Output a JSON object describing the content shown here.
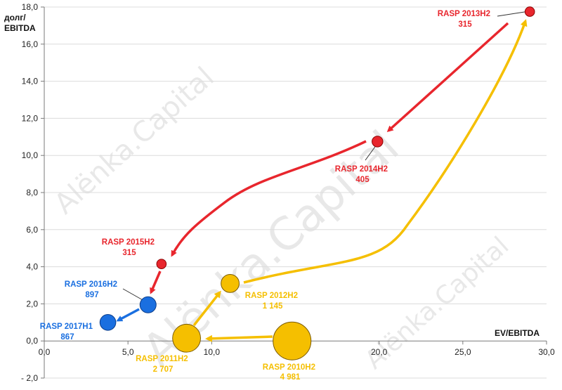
{
  "chart_data": {
    "type": "scatter",
    "title": "",
    "xlabel": "EV/EBITDA",
    "ylabel_lines": [
      "долг/",
      "EBITDA"
    ],
    "xlim": [
      0,
      30
    ],
    "ylim": [
      -2,
      18
    ],
    "x_ticks": [
      "0,0",
      "5,0",
      "10,0",
      "15,0",
      "20,0",
      "25,0",
      "30,0"
    ],
    "y_ticks": [
      "- 2,0",
      "0,0",
      "2,0",
      "4,0",
      "6,0",
      "8,0",
      "10,0",
      "12,0",
      "14,0",
      "16,0",
      "18,0"
    ],
    "grid": "horizontal",
    "watermark": "Alёnka.Capital",
    "colors": {
      "red": "#e8262d",
      "yellow": "#f5bf00",
      "blue": "#1a6fe0"
    },
    "points": [
      {
        "name": "RASP 2010H2",
        "value": "4 981",
        "x": 14.8,
        "y": 0.0,
        "color": "yellow"
      },
      {
        "name": "RASP 2011H2",
        "value": "2 707",
        "x": 8.5,
        "y": 0.15,
        "color": "yellow"
      },
      {
        "name": "RASP 2012H2",
        "value": "1 145",
        "x": 11.1,
        "y": 3.1,
        "color": "yellow"
      },
      {
        "name": "RASP 2013H2",
        "value": "315",
        "x": 29.0,
        "y": 17.75,
        "color": "red"
      },
      {
        "name": "RASP 2014H2",
        "value": "405",
        "x": 19.9,
        "y": 10.75,
        "color": "red"
      },
      {
        "name": "RASP 2015H2",
        "value": "315",
        "x": 7.0,
        "y": 4.15,
        "color": "red"
      },
      {
        "name": "RASP 2016H2",
        "value": "897",
        "x": 6.2,
        "y": 1.95,
        "color": "blue"
      },
      {
        "name": "RASP 2017H1",
        "value": "867",
        "x": 3.8,
        "y": 1.0,
        "color": "blue"
      }
    ]
  }
}
